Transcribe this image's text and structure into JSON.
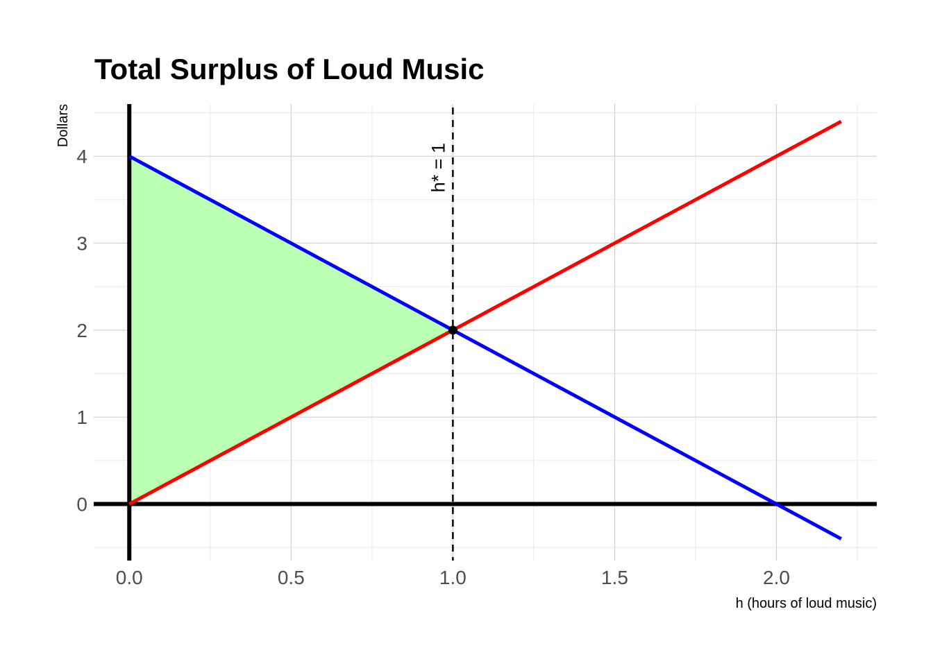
{
  "chart_data": {
    "type": "line",
    "title": "Total Surplus of Loud Music",
    "xlabel": "h (hours of loud music)",
    "ylabel": "Dollars",
    "xlim": [
      -0.11,
      2.31
    ],
    "ylim": [
      -0.65,
      4.6
    ],
    "x_ticks": [
      {
        "value": 0.0,
        "label": "0.0"
      },
      {
        "value": 0.5,
        "label": "0.5"
      },
      {
        "value": 1.0,
        "label": "1.0"
      },
      {
        "value": 1.5,
        "label": "1.5"
      },
      {
        "value": 2.0,
        "label": "2.0"
      }
    ],
    "y_ticks": [
      {
        "value": 0,
        "label": "0"
      },
      {
        "value": 1,
        "label": "1"
      },
      {
        "value": 2,
        "label": "2"
      },
      {
        "value": 3,
        "label": "3"
      },
      {
        "value": 4,
        "label": "4"
      }
    ],
    "grid": true,
    "legend": "none",
    "surplus_area": {
      "color": "#bbffb3",
      "points": [
        [
          0,
          4
        ],
        [
          1,
          2
        ],
        [
          0,
          0
        ]
      ]
    },
    "series": [
      {
        "color": "#ff0000",
        "x": [
          0,
          2.2
        ],
        "y": [
          0,
          4.4
        ]
      },
      {
        "color": "#0000ff",
        "x": [
          0,
          2.2
        ],
        "y": [
          4,
          -0.4
        ]
      }
    ],
    "equilibrium_point": {
      "x": 1,
      "y": 2
    },
    "vline": {
      "x": 1,
      "label": "h* = 1"
    },
    "axis_lines": {
      "x": 0,
      "y": 0,
      "color": "#000000"
    }
  }
}
